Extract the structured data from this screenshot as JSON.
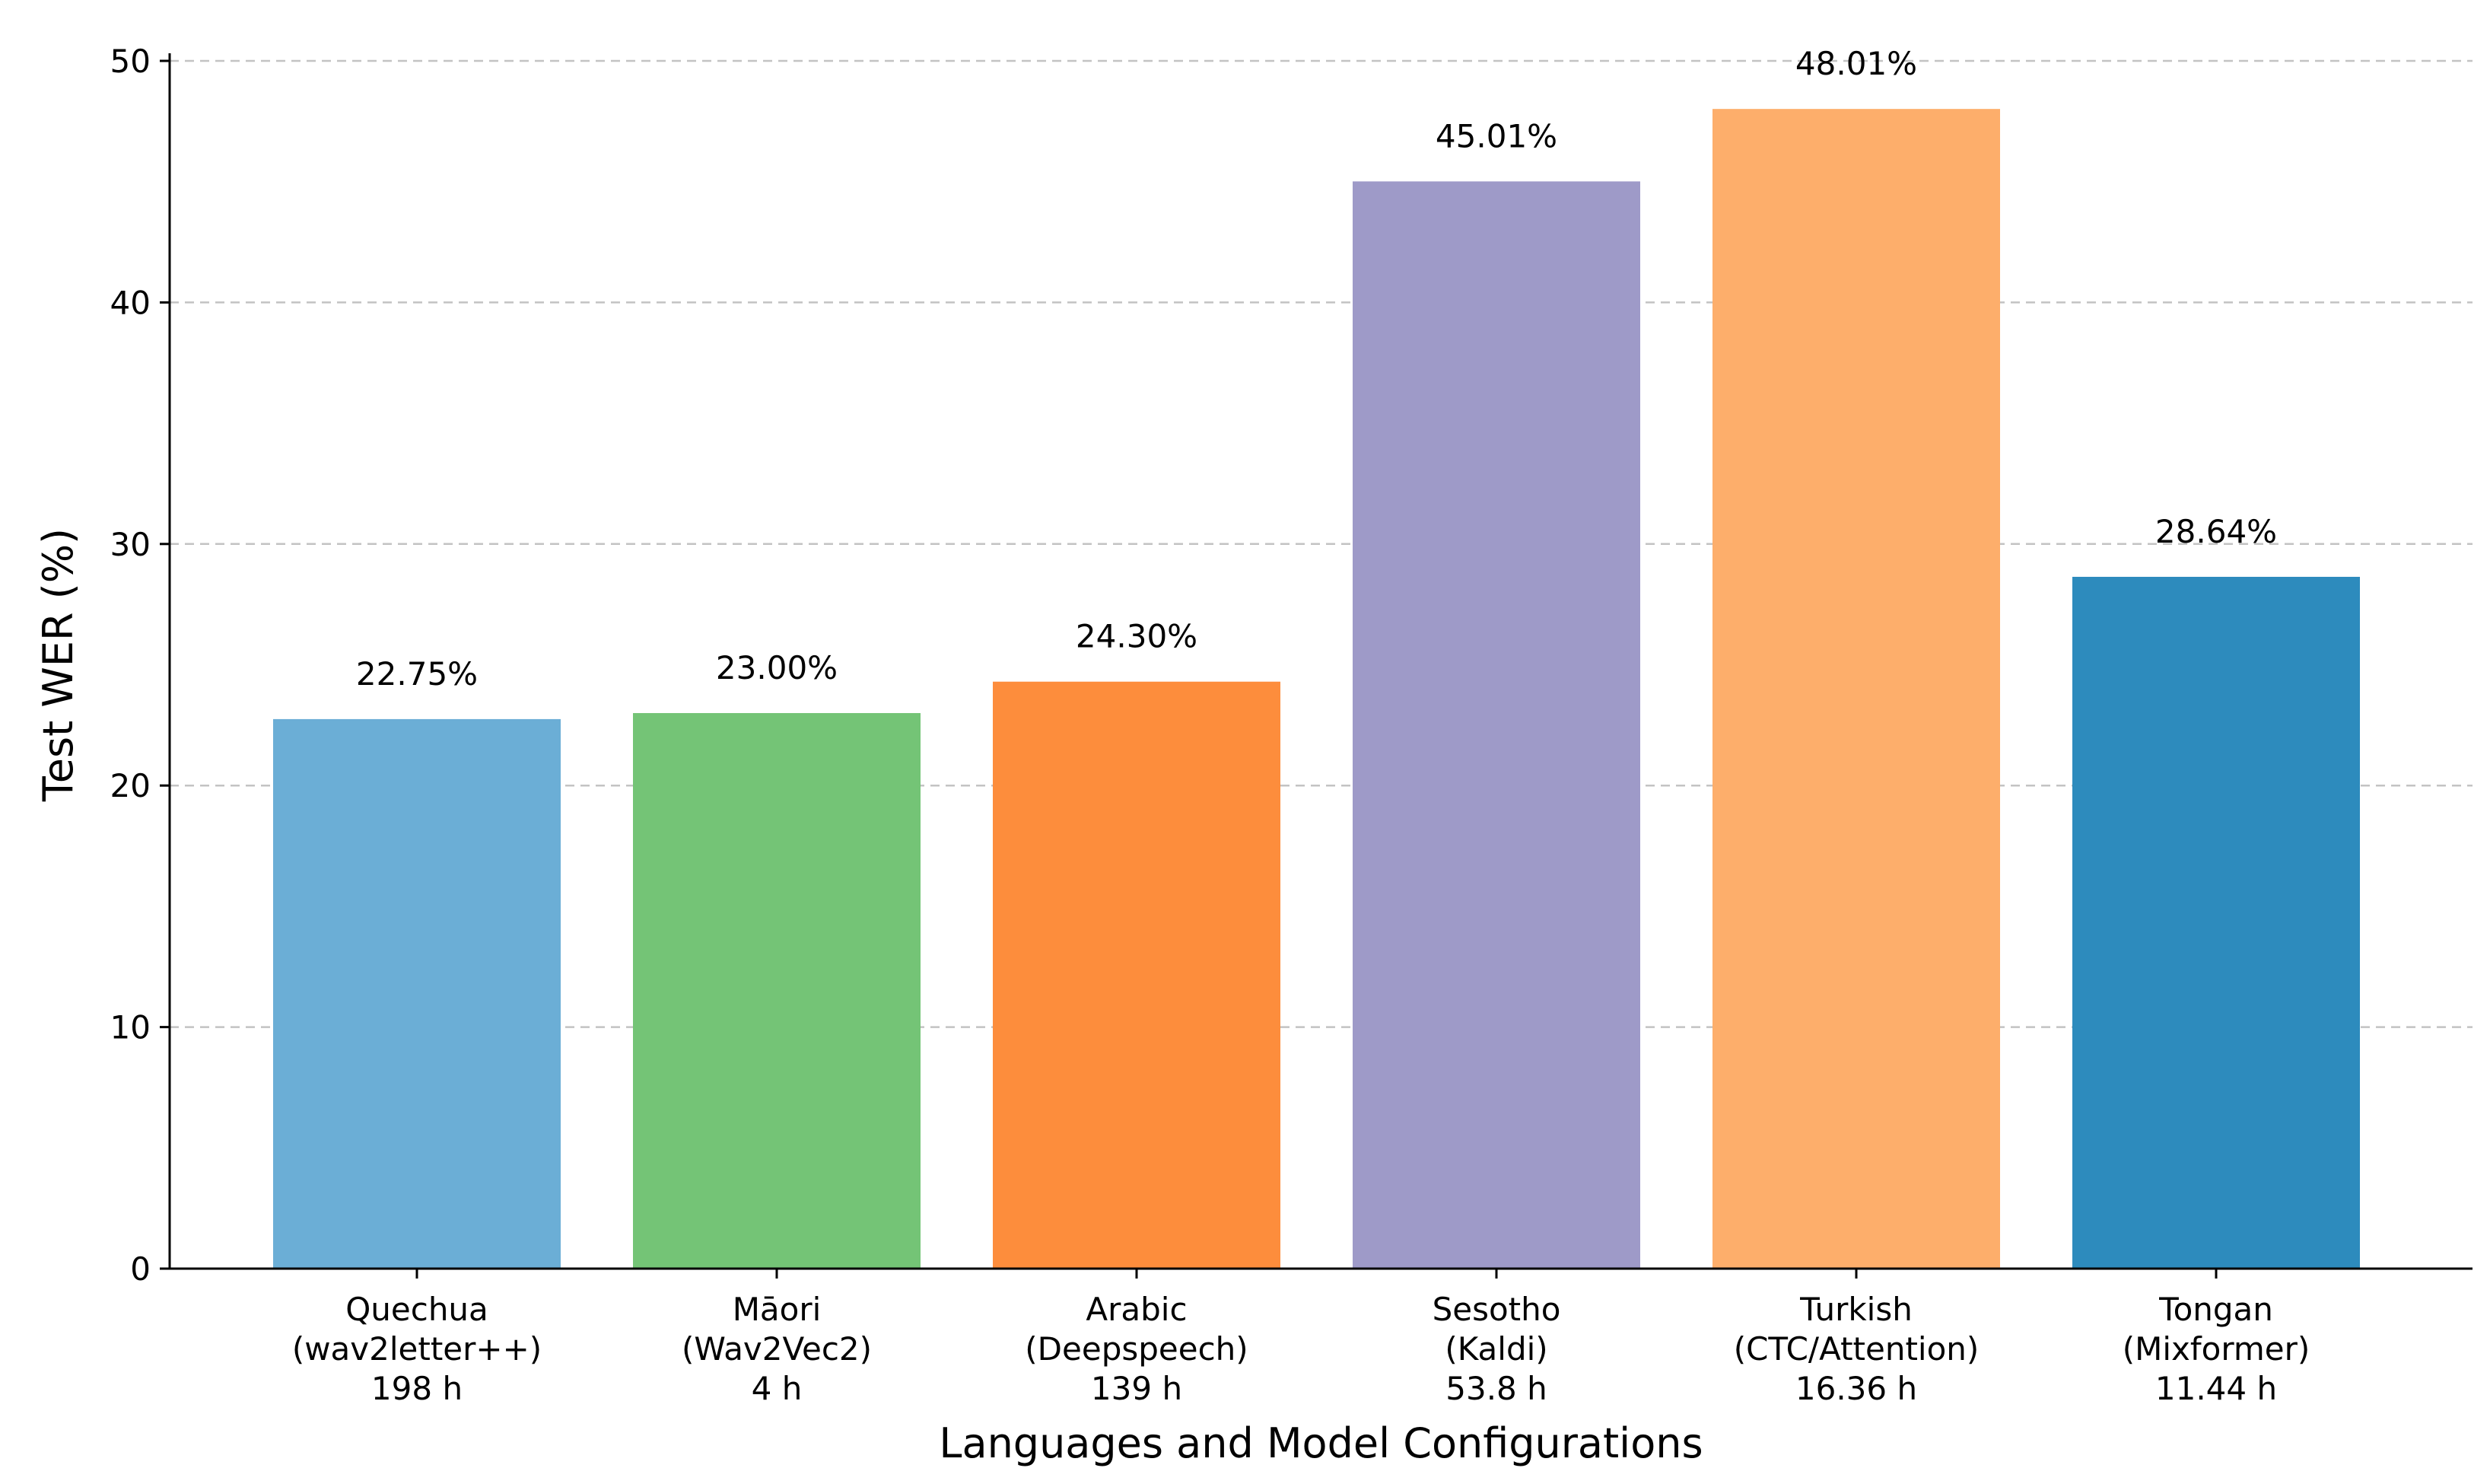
{
  "chart_data": {
    "type": "bar",
    "title": "",
    "xlabel": "Languages and Model Configurations",
    "ylabel": "Test WER (%)",
    "ylim": [
      0,
      50
    ],
    "yticks": [
      0,
      10,
      20,
      30,
      40,
      50
    ],
    "grid": "y-dashed",
    "categories": [
      {
        "language": "Quechua",
        "model": "(wav2letter++)",
        "hours": "198 h"
      },
      {
        "language": "Māori",
        "model": "(Wav2Vec2)",
        "hours": "4 h"
      },
      {
        "language": "Arabic",
        "model": "(Deepspeech)",
        "hours": "139 h"
      },
      {
        "language": "Sesotho",
        "model": "(Kaldi)",
        "hours": "53.8 h"
      },
      {
        "language": "Turkish",
        "model": "(CTC/Attention)",
        "hours": "16.36 h"
      },
      {
        "language": "Tongan",
        "model": "(Mixformer)",
        "hours": "11.44 h"
      }
    ],
    "values": [
      22.75,
      23.0,
      24.3,
      45.01,
      48.01,
      28.64
    ],
    "value_labels": [
      "22.75%",
      "23.00%",
      "24.30%",
      "45.01%",
      "48.01%",
      "28.64%"
    ],
    "colors": [
      "#6baed6",
      "#74c476",
      "#fd8d3c",
      "#9e9ac8",
      "#fdae6b",
      "#2d8bbd"
    ]
  }
}
